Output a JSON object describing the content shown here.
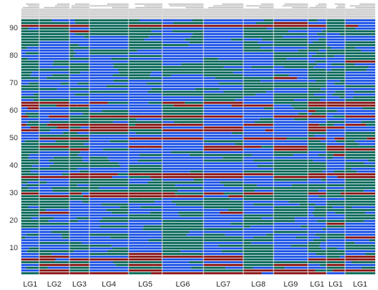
{
  "chart_data": {
    "type": "heatmap",
    "title": "",
    "xlabel": "",
    "ylabel": "",
    "ylim": [
      0,
      93
    ],
    "ytick_labels": [
      "10",
      "20",
      "30",
      "40",
      "50",
      "60",
      "70",
      "80",
      "90"
    ],
    "ytick_values": [
      10,
      20,
      30,
      40,
      50,
      60,
      70,
      80,
      90
    ],
    "groups": [
      "LG1",
      "LG2",
      "LG3",
      "LG4",
      "LG5",
      "LG6",
      "LG7",
      "LG8",
      "LG9",
      "LG1",
      "LG1",
      "LG1"
    ],
    "colors": {
      "blue": "#1f55e6",
      "green": "#0b6b5c",
      "red": "#8b1a1a",
      "header": "#c9c9c9",
      "divider": "#e0e0e0"
    },
    "rows": 93,
    "header_rows": 9
  }
}
